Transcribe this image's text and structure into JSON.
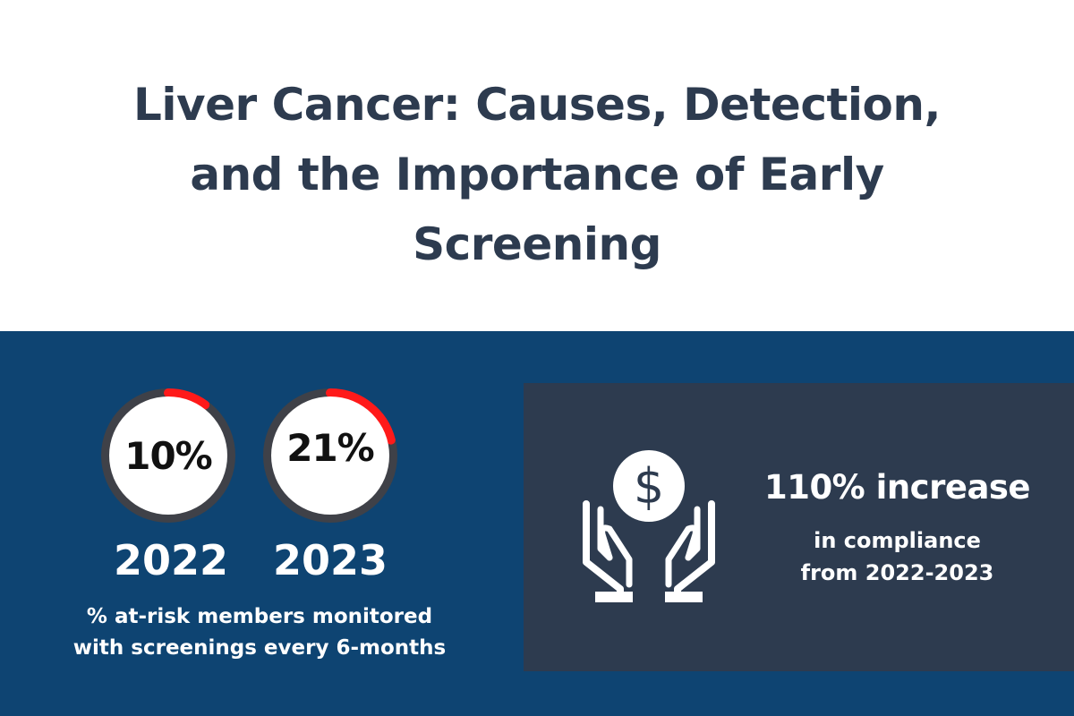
{
  "header": {
    "title": "Liver Cancer: Causes, Detection, and the Importance of Early Screening"
  },
  "monitoring": {
    "items": [
      {
        "value_label": "10%",
        "value": 10,
        "year": "2022"
      },
      {
        "value_label": "21%",
        "value": 21,
        "year": "2023"
      }
    ],
    "caption_line1": "% at-risk members monitored",
    "caption_line2": "with screenings every 6-months"
  },
  "compliance": {
    "icon": "hands-holding-dollar-icon",
    "headline": "110% increase",
    "line1": "in compliance",
    "line2": "from 2022-2023"
  },
  "colors": {
    "title_text": "#2d3b4f",
    "band_background": "#0e4472",
    "panel_background": "#2d3b4f",
    "ring_track": "#3f4148",
    "ring_progress": "#ff1a1a",
    "ring_center": "#ffffff",
    "text_light": "#ffffff"
  }
}
